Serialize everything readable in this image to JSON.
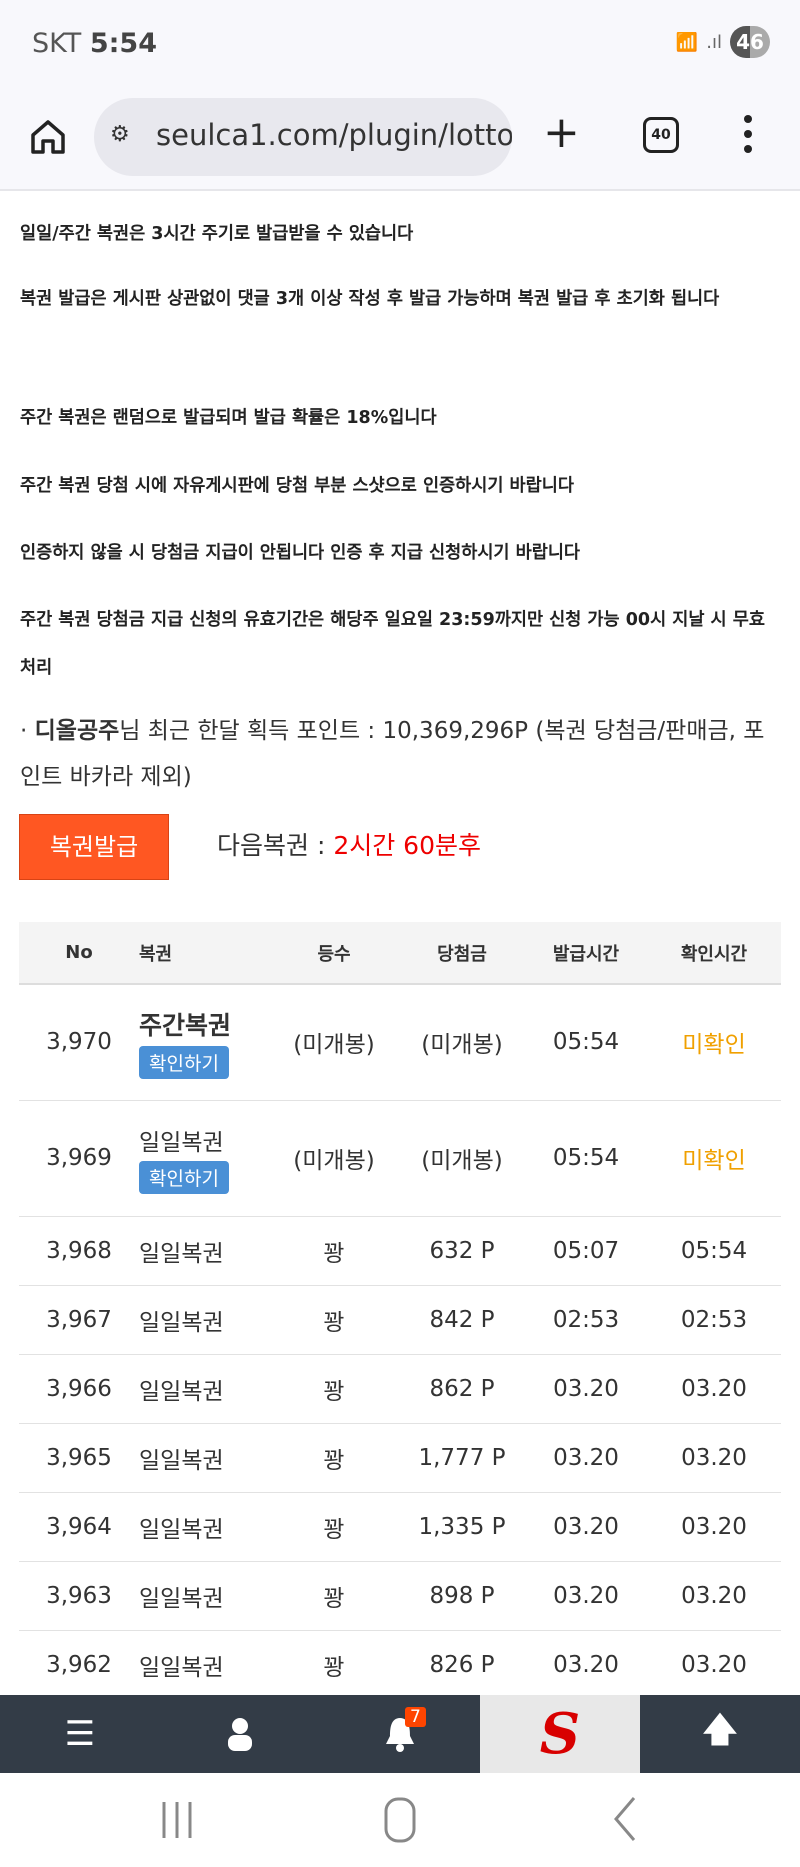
{
  "status": {
    "carrier": "SKT",
    "time": "5:54",
    "battery": "46",
    "wifi_label": "5"
  },
  "browser": {
    "url": "seulca1.com/plugin/lotto",
    "tab_count": "40"
  },
  "notices": [
    "일일/주간 복권은 3시간 주기로 발급받을 수 있습니다",
    "복권 발급은 게시판 상관없이 댓글 3개 이상 작성 후 발급 가능하며 복권 발급 후 초기화 됩니다",
    "주간 복권은 랜덤으로 발급되며 발급 확률은 18%입니다",
    "주간 복권 당첨 시에 자유게시판에 당첨 부분 스샷으로 인증하시기 바랍니다",
    "인증하지 않을 시 당첨금 지급이 안됩니다 인증 후 지급 신청하시기 바랍니다",
    "주간 복권 당첨금 지급 신청의 유효기간은 해당주 일요일 23:59까지만 신청 가능 00시 지날 시 무효 처리"
  ],
  "points": {
    "bullet": "·",
    "user": "디올공주",
    "text": "님 최근 한달 획득 포인트 : 10,369,296P (복권 당첨금/판매금, 포인트 바카라 제외)"
  },
  "issue_button": "복권발급",
  "next": {
    "label": "다음복권 : ",
    "value": "2시간 60분후"
  },
  "table": {
    "headers": [
      "No",
      "복권",
      "등수",
      "당첨금",
      "발급시간",
      "확인시간"
    ],
    "check_label": "확인하기",
    "rows": [
      {
        "no": "3,970",
        "type": "주간복권",
        "rank": "(미개봉)",
        "prize": "(미개봉)",
        "issued": "05:54",
        "checked": "미확인"
      },
      {
        "no": "3,969",
        "type": "일일복권",
        "rank": "(미개봉)",
        "prize": "(미개봉)",
        "issued": "05:54",
        "checked": "미확인"
      },
      {
        "no": "3,968",
        "type": "일일복권",
        "rank": "꽝",
        "prize": "632 P",
        "issued": "05:07",
        "checked": "05:54"
      },
      {
        "no": "3,967",
        "type": "일일복권",
        "rank": "꽝",
        "prize": "842 P",
        "issued": "02:53",
        "checked": "02:53"
      },
      {
        "no": "3,966",
        "type": "일일복권",
        "rank": "꽝",
        "prize": "862 P",
        "issued": "03.20",
        "checked": "03.20"
      },
      {
        "no": "3,965",
        "type": "일일복권",
        "rank": "꽝",
        "prize": "1,777 P",
        "issued": "03.20",
        "checked": "03.20"
      },
      {
        "no": "3,964",
        "type": "일일복권",
        "rank": "꽝",
        "prize": "1,335 P",
        "issued": "03.20",
        "checked": "03.20"
      },
      {
        "no": "3,963",
        "type": "일일복권",
        "rank": "꽝",
        "prize": "898 P",
        "issued": "03.20",
        "checked": "03.20"
      },
      {
        "no": "3,962",
        "type": "일일복권",
        "rank": "꽝",
        "prize": "826 P",
        "issued": "03.20",
        "checked": "03.20"
      }
    ]
  },
  "bottom_nav": {
    "notification_count": "7",
    "logo_letter": "S"
  },
  "colors": {
    "issue_button": "#ff5722",
    "next_value": "#ee0000",
    "unchecked": "#f0a000",
    "check_button": "#4a90d6",
    "nav_bg": "#333c47"
  }
}
